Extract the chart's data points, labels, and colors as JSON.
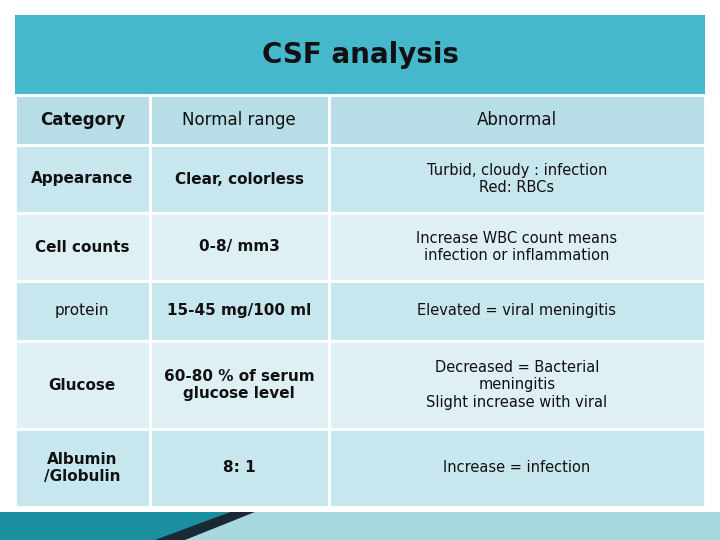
{
  "title": "CSF analysis",
  "title_bg": "#45b8cc",
  "header_bg": "#b8dde6",
  "row_bg_dark": "#c8e6ed",
  "row_bg_light": "#dff0f5",
  "text_color": "#111111",
  "columns": [
    "Category",
    "Normal range",
    "Abnormal"
  ],
  "rows": [
    {
      "category": "Appearance",
      "normal": "Clear, colorless",
      "abnormal": "Turbid, cloudy : infection\nRed: RBCs",
      "cat_bold": true,
      "norm_bold": true,
      "bg": "dark"
    },
    {
      "category": "Cell counts",
      "normal": "0-8/ mm3",
      "abnormal": "Increase WBC count means\ninfection or inflammation",
      "cat_bold": true,
      "norm_bold": true,
      "bg": "light"
    },
    {
      "category": "protein",
      "normal": "15-45 mg/100 ml",
      "abnormal": "Elevated = viral meningitis",
      "cat_bold": false,
      "norm_bold": true,
      "bg": "dark"
    },
    {
      "category": "Glucose",
      "normal": "60-80 % of serum\nglucose level",
      "abnormal": "Decreased = Bacterial\nmeningitis\nSlight increase with viral",
      "cat_bold": true,
      "norm_bold": true,
      "bg": "light"
    },
    {
      "category": "Albumin\n/Globulin",
      "normal": "8: 1",
      "abnormal": "Increase = infection",
      "cat_bold": true,
      "norm_bold": true,
      "bg": "dark"
    }
  ],
  "deco_teal": "#1a8fa0",
  "deco_light": "#a8d8e0",
  "deco_dark": "#1a2a35",
  "bg_color": "#ffffff"
}
